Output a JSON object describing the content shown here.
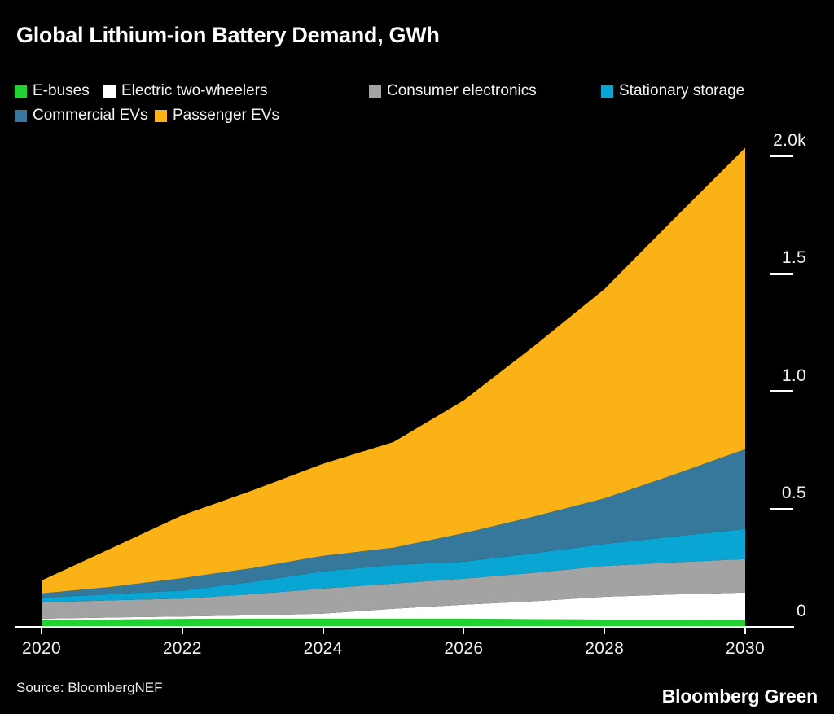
{
  "title": "Global Lithium-ion Battery Demand, GWh",
  "footer": {
    "source": "Source: BloombergNEF",
    "brand": "Bloomberg Green"
  },
  "colors": {
    "background": "#000000",
    "axis": "#ffffff",
    "text": "#f0f0f0"
  },
  "chart_data": {
    "type": "area",
    "stacked": true,
    "title": "Global Lithium-ion Battery Demand, GWh",
    "unit": "GWh",
    "legend_position": "top",
    "grid": false,
    "x": [
      2020,
      2021,
      2022,
      2023,
      2024,
      2025,
      2026,
      2027,
      2028,
      2029,
      2030
    ],
    "xlim": [
      2020,
      2030
    ],
    "ylim": [
      0,
      2041
    ],
    "series": [
      {
        "name": "E-buses",
        "color": "#1fd22f",
        "values": [
          28,
          31,
          34,
          35,
          35,
          35,
          35,
          33,
          31,
          30,
          28
        ]
      },
      {
        "name": "Electric two-wheelers",
        "color": "#ffffff",
        "values": [
          7,
          9,
          10,
          14,
          21,
          42,
          59,
          76,
          97,
          108,
          118
        ]
      },
      {
        "name": "Consumer electronics",
        "color": "#a3a3a3",
        "values": [
          69,
          73,
          76,
          90,
          107,
          107,
          111,
          121,
          131,
          136,
          142
        ]
      },
      {
        "name": "Stationary storage",
        "color": "#09a6d3",
        "values": [
          21,
          26,
          35,
          52,
          73,
          79,
          72,
          83,
          93,
          110,
          128
        ]
      },
      {
        "name": "Commercial EVs",
        "color": "#35789b",
        "values": [
          17,
          31,
          52,
          59,
          66,
          73,
          121,
          156,
          194,
          264,
          339
        ]
      },
      {
        "name": "Passenger EVs",
        "color": "#fbb217",
        "values": [
          55,
          165,
          267,
          330,
          391,
          449,
          564,
          724,
          889,
          1089,
          1280
        ]
      }
    ],
    "totals": [
      197,
      335,
      474,
      580,
      693,
      785,
      962,
      1193,
      1435,
      1737,
      2035
    ],
    "y_axis": {
      "side": "right",
      "ticks": [
        {
          "label": "0",
          "value": 0
        },
        {
          "label": "0.5",
          "value": 500
        },
        {
          "label": "1.0",
          "value": 1000
        },
        {
          "label": "1.5",
          "value": 1500
        },
        {
          "label": "2.0k",
          "value": 2000
        }
      ]
    },
    "x_axis": {
      "ticks": [
        {
          "label": "2020",
          "value": 2020
        },
        {
          "label": "2022",
          "value": 2022
        },
        {
          "label": "2024",
          "value": 2024
        },
        {
          "label": "2026",
          "value": 2026
        },
        {
          "label": "2028",
          "value": 2028
        },
        {
          "label": "2030",
          "value": 2030
        }
      ]
    }
  }
}
